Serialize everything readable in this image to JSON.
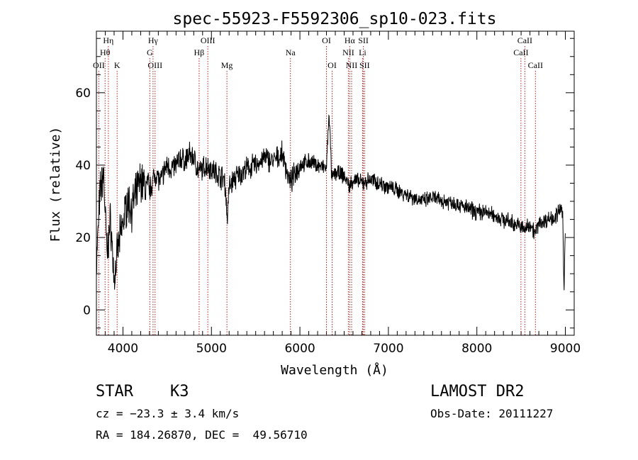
{
  "chart_data": {
    "type": "line",
    "title": "spec-55923-F5592306_sp10-023.fits",
    "xlabel": "Wavelength (Å)",
    "ylabel": "Flux (relative)",
    "xlim": [
      3700,
      9100
    ],
    "ylim": [
      -7,
      77
    ],
    "xticks": [
      4000,
      5000,
      6000,
      7000,
      8000,
      9000
    ],
    "yticks": [
      0,
      20,
      40,
      60
    ],
    "series": [
      {
        "name": "spectrum",
        "x": [
          3700,
          3740,
          3780,
          3820,
          3860,
          3900,
          3950,
          4000,
          4050,
          4100,
          4150,
          4200,
          4250,
          4300,
          4340,
          4380,
          4420,
          4460,
          4500,
          4550,
          4600,
          4650,
          4700,
          4750,
          4800,
          4860,
          4900,
          4950,
          5000,
          5050,
          5100,
          5150,
          5180,
          5200,
          5250,
          5300,
          5400,
          5500,
          5600,
          5700,
          5800,
          5890,
          5950,
          6000,
          6100,
          6200,
          6300,
          6330,
          6360,
          6400,
          6500,
          6563,
          6600,
          6700,
          6800,
          6900,
          7000,
          7100,
          7200,
          7300,
          7400,
          7500,
          7600,
          7700,
          7800,
          7900,
          8000,
          8100,
          8200,
          8300,
          8400,
          8498,
          8542,
          8600,
          8662,
          8700,
          8800,
          8900,
          8950,
          8970,
          8985,
          9000
        ],
        "y": [
          12,
          32,
          38,
          15,
          25,
          8,
          18,
          24,
          30,
          28,
          32,
          36,
          34,
          33,
          36,
          38,
          35,
          38,
          40,
          39,
          40,
          42,
          41,
          43,
          42,
          38,
          39,
          40,
          39,
          38,
          37,
          36,
          25,
          34,
          36,
          37,
          39,
          40,
          42,
          41,
          43,
          35,
          38,
          40,
          41,
          40,
          39,
          55,
          36,
          38,
          37,
          34,
          36,
          35,
          36,
          35,
          34,
          33,
          32,
          31,
          30,
          31,
          30,
          30,
          29,
          28,
          27,
          27,
          26,
          25,
          24,
          23,
          22,
          24,
          21,
          24,
          25,
          26,
          28,
          26,
          5,
          24
        ]
      }
    ],
    "lines": [
      {
        "label": "OII",
        "x": 3727,
        "row": 3
      },
      {
        "label": "Hθ",
        "x": 3798,
        "row": 2
      },
      {
        "label": "Hη",
        "x": 3835,
        "row": 1
      },
      {
        "label": "K",
        "x": 3934,
        "row": 3
      },
      {
        "label": "Hγ",
        "x": 4340,
        "row": 1
      },
      {
        "label": "G",
        "x": 4304,
        "row": 2
      },
      {
        "label": "OIII",
        "x": 4363,
        "row": 3
      },
      {
        "label": "OIII",
        "x": 4959,
        "row": 1
      },
      {
        "label": "Hβ",
        "x": 4861,
        "row": 2
      },
      {
        "label": "Mg",
        "x": 5175,
        "row": 3
      },
      {
        "label": "Na",
        "x": 5893,
        "row": 2
      },
      {
        "label": "OI",
        "x": 6300,
        "row": 1
      },
      {
        "label": "OI",
        "x": 6364,
        "row": 3
      },
      {
        "label": "Hα",
        "x": 6563,
        "row": 1
      },
      {
        "label": "NII",
        "x": 6548,
        "row": 2
      },
      {
        "label": "NII",
        "x": 6584,
        "row": 3
      },
      {
        "label": "SII",
        "x": 6717,
        "row": 1
      },
      {
        "label": "Li",
        "x": 6708,
        "row": 2
      },
      {
        "label": "SII",
        "x": 6731,
        "row": 3
      },
      {
        "label": "CaII",
        "x": 8542,
        "row": 1
      },
      {
        "label": "CaII",
        "x": 8498,
        "row": 2
      },
      {
        "label": "CaII",
        "x": 8662,
        "row": 3
      }
    ],
    "grid": false,
    "legend": "none"
  },
  "info": {
    "class": "STAR",
    "subclass": "K3",
    "survey": "LAMOST DR2",
    "cz": "cz = −23.3 ± 3.4 km/s",
    "obs_date": "Obs-Date: 20111227",
    "coords": "RA = 184.26870, DEC =  49.56710"
  },
  "colors": {
    "spectrum": "#000000",
    "marker_lines": "#b22222",
    "axes": "#000000"
  }
}
